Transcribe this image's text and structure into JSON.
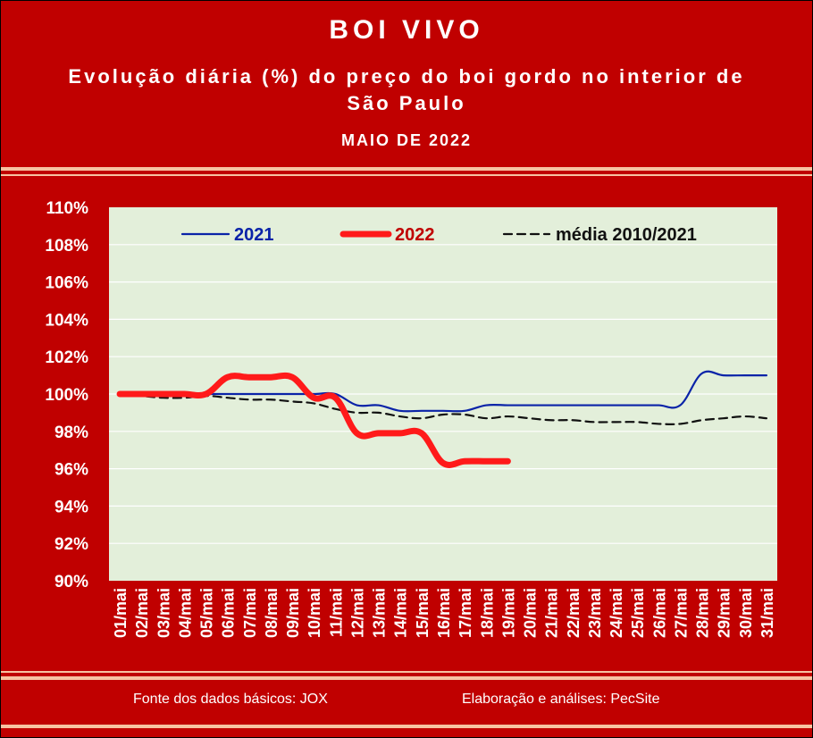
{
  "header": {
    "title": "BOI VIVO",
    "subtitle_line1": "Evolução diária (%) do preço do boi gordo no interior de",
    "subtitle_line2": "São Paulo",
    "period": "MAIO DE 2022"
  },
  "footer": {
    "source": "Fonte dos dados básicos: JOX",
    "credit": "Elaboração e análises: PecSite"
  },
  "colors": {
    "background": "#c00000",
    "plot_area": "#e3efda",
    "series_2021": "#0a23a8",
    "series_2022": "#ff1a1a",
    "series_media": "#111111",
    "stripe": "#f7c3a2"
  },
  "chart_data": {
    "type": "line",
    "categories": [
      "01/mai",
      "02/mai",
      "03/mai",
      "04/mai",
      "05/mai",
      "06/mai",
      "07/mai",
      "08/mai",
      "09/mai",
      "10/mai",
      "11/mai",
      "12/mai",
      "13/mai",
      "14/mai",
      "15/mai",
      "16/mai",
      "17/mai",
      "18/mai",
      "19/mai",
      "20/mai",
      "21/mai",
      "22/mai",
      "23/mai",
      "24/mai",
      "25/mai",
      "26/mai",
      "27/mai",
      "28/mai",
      "29/mai",
      "30/mai",
      "31/mai"
    ],
    "yticks": [
      "110%",
      "108%",
      "106%",
      "104%",
      "102%",
      "100%",
      "98%",
      "96%",
      "94%",
      "92%",
      "90%"
    ],
    "ylim": [
      90,
      110
    ],
    "grid": true,
    "legend_position": "top",
    "series": [
      {
        "name": "2021",
        "style": "solid-thin",
        "values": [
          100,
          100,
          100,
          100,
          100,
          100,
          100,
          100,
          100,
          100,
          100,
          99.4,
          99.4,
          99.1,
          99.1,
          99.1,
          99.1,
          99.4,
          99.4,
          99.4,
          99.4,
          99.4,
          99.4,
          99.4,
          99.4,
          99.4,
          99.4,
          101.1,
          101,
          101,
          101
        ]
      },
      {
        "name": "2022",
        "style": "solid-thick",
        "values": [
          100,
          100,
          100,
          100,
          100,
          100.9,
          100.9,
          100.9,
          100.9,
          99.8,
          99.8,
          97.9,
          97.9,
          97.9,
          97.9,
          96.3,
          96.4,
          96.4,
          96.4,
          null,
          null,
          null,
          null,
          null,
          null,
          null,
          null,
          null,
          null,
          null,
          null
        ]
      },
      {
        "name": "média 2010/2021",
        "style": "dashed",
        "values": [
          100,
          99.9,
          99.8,
          99.8,
          99.9,
          99.8,
          99.7,
          99.7,
          99.6,
          99.5,
          99.2,
          99,
          99,
          98.8,
          98.7,
          98.9,
          98.9,
          98.7,
          98.8,
          98.7,
          98.6,
          98.6,
          98.5,
          98.5,
          98.5,
          98.4,
          98.4,
          98.6,
          98.7,
          98.8,
          98.7
        ]
      }
    ]
  }
}
